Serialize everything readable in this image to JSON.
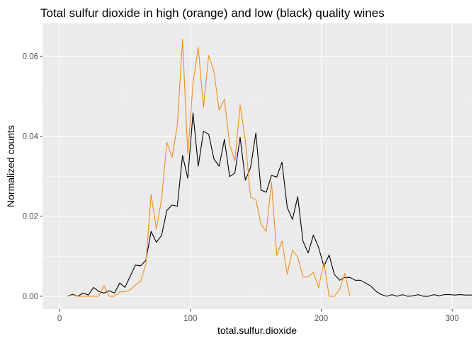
{
  "chart_data": {
    "type": "line",
    "title": "Total sulfur dioxide in high (orange) and low (black) quality wines",
    "xlabel": "total.sulfur.dioxide",
    "ylabel": "Normalized counts",
    "xlim": [
      -13,
      315
    ],
    "ylim": [
      -0.0032,
      0.0682
    ],
    "x_ticks": [
      0,
      100,
      200,
      300
    ],
    "x_tick_labels": [
      "0",
      "100",
      "200",
      "300"
    ],
    "y_ticks": [
      0.0,
      0.02,
      0.04,
      0.06
    ],
    "y_tick_labels": [
      "0.00",
      "0.02",
      "0.04",
      "0.06"
    ],
    "grid": true,
    "legend": "none",
    "series": [
      {
        "color": "#000000",
        "points": [
          [
            6,
            0.0
          ],
          [
            10,
            0.0005
          ],
          [
            14,
            0.0
          ],
          [
            18,
            0.0008
          ],
          [
            22,
            0.0003
          ],
          [
            26,
            0.0022
          ],
          [
            30,
            0.0012
          ],
          [
            34,
            0.0008
          ],
          [
            38,
            0.0014
          ],
          [
            42,
            0.0008
          ],
          [
            46,
            0.0033
          ],
          [
            50,
            0.0022
          ],
          [
            54,
            0.005
          ],
          [
            58,
            0.0078
          ],
          [
            62,
            0.0076
          ],
          [
            66,
            0.009
          ],
          [
            70,
            0.0162
          ],
          [
            74,
            0.0135
          ],
          [
            78,
            0.0152
          ],
          [
            82,
            0.0214
          ],
          [
            86,
            0.0228
          ],
          [
            90,
            0.0225
          ],
          [
            94,
            0.0352
          ],
          [
            98,
            0.0295
          ],
          [
            102,
            0.0458
          ],
          [
            106,
            0.0325
          ],
          [
            110,
            0.0412
          ],
          [
            114,
            0.0405
          ],
          [
            118,
            0.0343
          ],
          [
            122,
            0.0325
          ],
          [
            126,
            0.0392
          ],
          [
            130,
            0.0299
          ],
          [
            134,
            0.0308
          ],
          [
            138,
            0.0397
          ],
          [
            142,
            0.029
          ],
          [
            146,
            0.0322
          ],
          [
            150,
            0.0408
          ],
          [
            154,
            0.0265
          ],
          [
            158,
            0.026
          ],
          [
            162,
            0.0302
          ],
          [
            166,
            0.0298
          ],
          [
            170,
            0.0335
          ],
          [
            174,
            0.0222
          ],
          [
            178,
            0.0192
          ],
          [
            182,
            0.0249
          ],
          [
            186,
            0.0138
          ],
          [
            190,
            0.0108
          ],
          [
            194,
            0.0153
          ],
          [
            198,
            0.0122
          ],
          [
            202,
            0.0075
          ],
          [
            206,
            0.0103
          ],
          [
            210,
            0.0055
          ],
          [
            214,
            0.004
          ],
          [
            218,
            0.0047
          ],
          [
            222,
            0.0047
          ],
          [
            226,
            0.004
          ],
          [
            230,
            0.004
          ],
          [
            234,
            0.0033
          ],
          [
            238,
            0.0025
          ],
          [
            242,
            0.0012
          ],
          [
            246,
            0.0004
          ],
          [
            250,
            0.0
          ],
          [
            254,
            0.0004
          ],
          [
            258,
            0.0
          ],
          [
            262,
            0.0004
          ],
          [
            266,
            0.0
          ],
          [
            270,
            0.0001
          ],
          [
            274,
            0.0004
          ],
          [
            278,
            0.0
          ],
          [
            282,
            0.0
          ],
          [
            286,
            0.0004
          ],
          [
            290,
            0.0001
          ],
          [
            294,
            0.0004
          ],
          [
            298,
            0.0004
          ],
          [
            302,
            0.0003
          ],
          [
            306,
            0.0004
          ],
          [
            310,
            0.0003
          ],
          [
            315,
            0.0003
          ]
        ]
      },
      {
        "color": "#f28e1c",
        "points": [
          [
            6,
            0.0
          ],
          [
            10,
            0.0003
          ],
          [
            14,
            0.0
          ],
          [
            18,
            0.0
          ],
          [
            22,
            0.0
          ],
          [
            26,
            0.0
          ],
          [
            30,
            0.0
          ],
          [
            34,
            0.0027
          ],
          [
            38,
            0.0
          ],
          [
            42,
            0.0
          ],
          [
            46,
            0.0011
          ],
          [
            50,
            0.0011
          ],
          [
            54,
            0.0016
          ],
          [
            58,
            0.0028
          ],
          [
            62,
            0.0038
          ],
          [
            66,
            0.0081
          ],
          [
            70,
            0.0255
          ],
          [
            74,
            0.0168
          ],
          [
            78,
            0.0242
          ],
          [
            82,
            0.0385
          ],
          [
            86,
            0.0347
          ],
          [
            90,
            0.0428
          ],
          [
            94,
            0.0642
          ],
          [
            98,
            0.0355
          ],
          [
            102,
            0.0532
          ],
          [
            106,
            0.0622
          ],
          [
            110,
            0.0472
          ],
          [
            114,
            0.0602
          ],
          [
            118,
            0.0562
          ],
          [
            122,
            0.0465
          ],
          [
            126,
            0.0492
          ],
          [
            130,
            0.038
          ],
          [
            134,
            0.0338
          ],
          [
            138,
            0.0478
          ],
          [
            142,
            0.0388
          ],
          [
            146,
            0.0248
          ],
          [
            150,
            0.0242
          ],
          [
            154,
            0.018
          ],
          [
            158,
            0.0162
          ],
          [
            162,
            0.0285
          ],
          [
            166,
            0.0102
          ],
          [
            170,
            0.0138
          ],
          [
            174,
            0.0055
          ],
          [
            178,
            0.0115
          ],
          [
            182,
            0.0098
          ],
          [
            186,
            0.0048
          ],
          [
            190,
            0.0048
          ],
          [
            194,
            0.006
          ],
          [
            198,
            0.0022
          ],
          [
            202,
            0.0085
          ],
          [
            206,
            0.0
          ],
          [
            210,
            0.0
          ],
          [
            214,
            0.0017
          ],
          [
            218,
            0.0057
          ],
          [
            222,
            0.0
          ]
        ]
      }
    ]
  }
}
